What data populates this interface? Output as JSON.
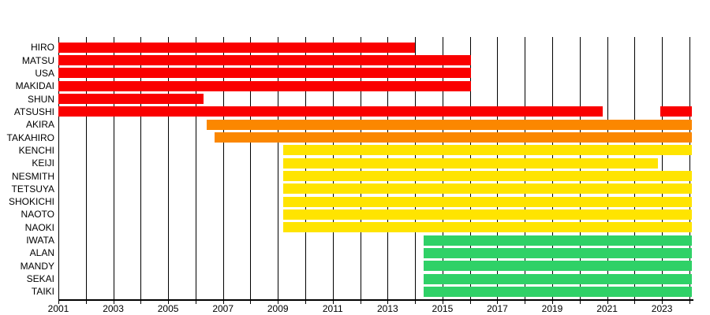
{
  "chart_data": {
    "type": "bar",
    "subtype": "gantt-timeline",
    "title": "",
    "xlabel": "",
    "ylabel": "",
    "x_axis": {
      "min": 2001,
      "max": 2024.1,
      "gridline_year_start": 2001,
      "gridline_year_end": 2024,
      "gridline_step": 1,
      "tick_label_years": [
        2001,
        2003,
        2005,
        2007,
        2009,
        2011,
        2013,
        2015,
        2017,
        2019,
        2021,
        2023
      ],
      "grid": true
    },
    "colors": {
      "red": "#FA0000",
      "orange": "#FB8700",
      "yellow": "#FFE400",
      "green": "#2FD167",
      "axis": "#000000",
      "text": "#000000",
      "background": "#FFFFFF"
    },
    "members": [
      {
        "name": "HIRO",
        "color": "red",
        "segments": [
          [
            2001.0,
            2014.0
          ]
        ]
      },
      {
        "name": "MATSU",
        "color": "red",
        "segments": [
          [
            2001.0,
            2016.05
          ]
        ]
      },
      {
        "name": "USA",
        "color": "red",
        "segments": [
          [
            2001.0,
            2016.05
          ]
        ]
      },
      {
        "name": "MAKIDAI",
        "color": "red",
        "segments": [
          [
            2001.0,
            2016.05
          ]
        ]
      },
      {
        "name": "SHUN",
        "color": "red",
        "segments": [
          [
            2001.0,
            2006.3
          ]
        ]
      },
      {
        "name": "ATSUSHI",
        "color": "red",
        "segments": [
          [
            2001.0,
            2020.85
          ],
          [
            2022.95,
            2024.1
          ]
        ]
      },
      {
        "name": "AKIRA",
        "color": "orange",
        "segments": [
          [
            2006.4,
            2024.1
          ]
        ]
      },
      {
        "name": "TAKAHIRO",
        "color": "orange",
        "segments": [
          [
            2006.7,
            2024.1
          ]
        ]
      },
      {
        "name": "KENCHI",
        "color": "yellow",
        "segments": [
          [
            2009.2,
            2024.1
          ]
        ]
      },
      {
        "name": "KEIJI",
        "color": "yellow",
        "segments": [
          [
            2009.2,
            2022.85
          ]
        ]
      },
      {
        "name": "NESMITH",
        "color": "yellow",
        "segments": [
          [
            2009.2,
            2024.1
          ]
        ]
      },
      {
        "name": "TETSUYA",
        "color": "yellow",
        "segments": [
          [
            2009.2,
            2024.1
          ]
        ]
      },
      {
        "name": "SHOKICHI",
        "color": "yellow",
        "segments": [
          [
            2009.2,
            2024.1
          ]
        ]
      },
      {
        "name": "NAOTO",
        "color": "yellow",
        "segments": [
          [
            2009.2,
            2024.1
          ]
        ]
      },
      {
        "name": "NAOKI",
        "color": "yellow",
        "segments": [
          [
            2009.2,
            2024.1
          ]
        ]
      },
      {
        "name": "IWATA",
        "color": "green",
        "segments": [
          [
            2014.3,
            2024.1
          ]
        ]
      },
      {
        "name": "ALAN",
        "color": "green",
        "segments": [
          [
            2014.3,
            2024.1
          ]
        ]
      },
      {
        "name": "MANDY",
        "color": "green",
        "segments": [
          [
            2014.3,
            2024.1
          ]
        ]
      },
      {
        "name": "SEKAI",
        "color": "green",
        "segments": [
          [
            2014.3,
            2024.1
          ]
        ]
      },
      {
        "name": "TAIKI",
        "color": "green",
        "segments": [
          [
            2014.3,
            2024.1
          ]
        ]
      }
    ]
  }
}
